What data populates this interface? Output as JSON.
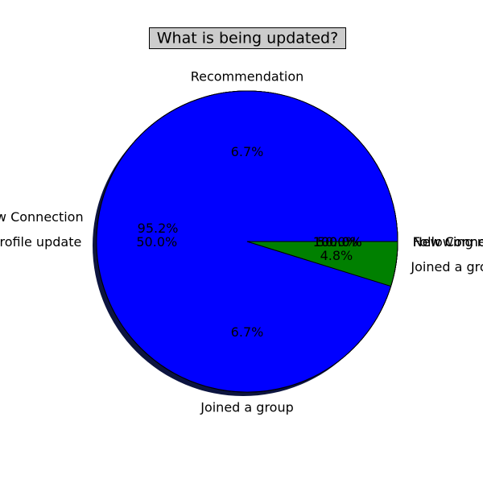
{
  "chart_data": [
    {
      "type": "pie",
      "title": "What is being updated?",
      "slices": [
        {
          "label": "Profile update",
          "value": 50.0,
          "pct_text": "50.0%",
          "color": "#0000ff"
        },
        {
          "label": "Following new company",
          "value": 50.0,
          "pct_text": "50.0%",
          "color": "#0000ff"
        }
      ]
    },
    {
      "type": "pie",
      "slices": [
        {
          "label": "New Connection",
          "value": 95.2,
          "pct_text": "95.2%",
          "color": "#0000ff"
        },
        {
          "label": "Joined a group",
          "value": 4.8,
          "pct_text": "4.8%",
          "color": "#008000"
        }
      ]
    },
    {
      "type": "pie",
      "slices": [
        {
          "label": "Recommendation",
          "value": 6.7,
          "pct_text": "6.7%",
          "color": "#0000ff"
        },
        {
          "label": "Joined a group",
          "value": 6.7,
          "pct_text": "6.7%",
          "color": "#008000"
        }
      ]
    },
    {
      "type": "pie",
      "slices": [
        {
          "label": "New Connection",
          "value": 100.0,
          "pct_text": "100.0%",
          "color": "#0000ff"
        }
      ]
    },
    {
      "type": "pie",
      "slices": [
        {
          "label": "New Connection",
          "value": 100.0,
          "pct_text": "100.0%",
          "color": "#0000ff"
        }
      ]
    }
  ],
  "colors": {
    "shadow": "#0c1440",
    "title_bg": "#cccccc"
  }
}
